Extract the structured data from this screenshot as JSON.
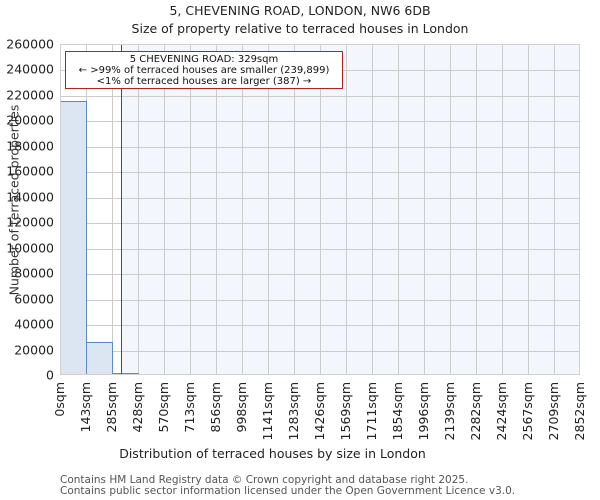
{
  "header": {
    "title": "5, CHEVENING ROAD, LONDON, NW6 6DB",
    "subtitle": "Size of property relative to terraced houses in London"
  },
  "annotation": {
    "line1": "5 CHEVENING ROAD: 329sqm",
    "line2": "← >99% of terraced houses are smaller (239,899)",
    "line3": "<1% of terraced houses are larger (387) →"
  },
  "axes": {
    "xlabel": "Distribution of terraced houses by size in London",
    "ylabel": "Number of terraced properties"
  },
  "footer": {
    "line1": "Contains HM Land Registry data © Crown copyright and database right 2025.",
    "line2": "Contains public sector information licensed under the Open Government Licence v3.0."
  },
  "colors": {
    "bar_fill": "#dce6f2",
    "bar_edge": "#5b8ac6",
    "marker": "#b22222",
    "plot_bg": "#f3f6fd",
    "grid": "#cccccc"
  },
  "chart_data": {
    "type": "bar",
    "title": "5, CHEVENING ROAD, LONDON, NW6 6DB",
    "subtitle": "Size of property relative to terraced houses in London",
    "xlabel": "Distribution of terraced houses by size in London",
    "ylabel": "Number of terraced properties",
    "bin_edges": [
      0,
      143,
      285,
      428,
      570,
      713,
      856,
      998,
      1141,
      1283,
      1426,
      1569,
      1711,
      1854,
      1996,
      2139,
      2282,
      2424,
      2567,
      2709,
      2852
    ],
    "tick_labels": [
      "0sqm",
      "143sqm",
      "285sqm",
      "428sqm",
      "570sqm",
      "713sqm",
      "856sqm",
      "998sqm",
      "1141sqm",
      "1283sqm",
      "1426sqm",
      "1569sqm",
      "1711sqm",
      "1854sqm",
      "1996sqm",
      "2139sqm",
      "2282sqm",
      "2424sqm",
      "2567sqm",
      "2709sqm",
      "2852sqm"
    ],
    "values": [
      214500,
      25100,
      600,
      0,
      0,
      0,
      0,
      0,
      0,
      0,
      0,
      0,
      0,
      0,
      0,
      0,
      0,
      0,
      0,
      0
    ],
    "yticks": [
      0,
      20000,
      40000,
      60000,
      80000,
      100000,
      120000,
      140000,
      160000,
      180000,
      200000,
      220000,
      240000,
      260000
    ],
    "ylim": [
      0,
      260000
    ],
    "xlim": [
      0,
      2852
    ],
    "marker": {
      "value": 329,
      "label": "5 CHEVENING ROAD: 329sqm",
      "smaller_count": 239899,
      "larger_count": 387
    },
    "grid": true,
    "legend": null
  }
}
